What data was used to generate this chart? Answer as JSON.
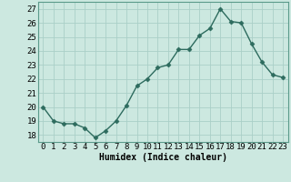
{
  "x": [
    0,
    1,
    2,
    3,
    4,
    5,
    6,
    7,
    8,
    9,
    10,
    11,
    12,
    13,
    14,
    15,
    16,
    17,
    18,
    19,
    20,
    21,
    22,
    23
  ],
  "y": [
    20,
    19,
    18.8,
    18.8,
    18.5,
    17.8,
    18.3,
    19,
    20.1,
    21.5,
    22,
    22.8,
    23,
    24.1,
    24.1,
    25.1,
    25.6,
    27,
    26.1,
    26,
    24.5,
    23.2,
    22.3,
    22.1
  ],
  "line_color": "#2d6b5e",
  "marker": "D",
  "marker_size": 2.5,
  "bg_color": "#cce8e0",
  "grid_color": "#aacfc8",
  "xlabel": "Humidex (Indice chaleur)",
  "xlim": [
    -0.5,
    23.5
  ],
  "ylim": [
    17.5,
    27.5
  ],
  "yticks": [
    18,
    19,
    20,
    21,
    22,
    23,
    24,
    25,
    26,
    27
  ],
  "xticks": [
    0,
    1,
    2,
    3,
    4,
    5,
    6,
    7,
    8,
    9,
    10,
    11,
    12,
    13,
    14,
    15,
    16,
    17,
    18,
    19,
    20,
    21,
    22,
    23
  ],
  "xlabel_fontsize": 7,
  "tick_fontsize": 6.5
}
